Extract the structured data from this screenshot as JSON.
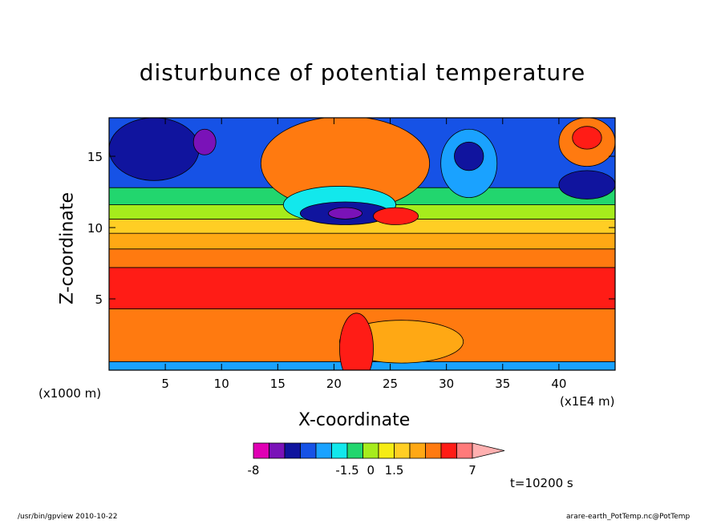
{
  "chart_data": {
    "type": "heatmap",
    "title": "disturbunce of potential temperature",
    "xlabel": "X-coordinate",
    "ylabel": "Z-coordinate",
    "x_unit_label": "(x1000 m)",
    "x_scale_label": "(x1E4 m)",
    "xlim": [
      0,
      45
    ],
    "ylim": [
      0,
      17.7
    ],
    "xticks": [
      5,
      10,
      15,
      20,
      25,
      30,
      35,
      40
    ],
    "xtick_labels": [
      "5",
      "10",
      "15",
      "20",
      "25",
      "30",
      "35",
      "40"
    ],
    "yticks": [
      5,
      10,
      15
    ],
    "ytick_labels": [
      "5",
      "10",
      "15"
    ],
    "colorbar": {
      "tick_labels": [
        "-8",
        "-1.5",
        "0",
        "1.5",
        "7"
      ],
      "colors": [
        "#e000b4",
        "#7a12b8",
        "#10149e",
        "#1652e6",
        "#1aa2ff",
        "#12e8ec",
        "#22d66e",
        "#a6ec1c",
        "#f6ec14",
        "#ffce24",
        "#ffa814",
        "#ff7a10",
        "#ff1c16",
        "#ff7a7a",
        "#ffb0b0"
      ]
    },
    "bands": [
      {
        "z": [
          0,
          0.6
        ],
        "level": 4
      },
      {
        "z": [
          0.6,
          4.3
        ],
        "level": 11
      },
      {
        "z": [
          4.3,
          7.2
        ],
        "level": 12
      },
      {
        "z": [
          7.2,
          8.5
        ],
        "level": 11
      },
      {
        "z": [
          8.5,
          9.6
        ],
        "level": 10
      },
      {
        "z": [
          9.6,
          10.6
        ],
        "level": 9
      },
      {
        "z": [
          10.6,
          11.6
        ],
        "level": 7
      },
      {
        "z": [
          11.6,
          12.8
        ],
        "level": 6
      },
      {
        "z": [
          12.8,
          17.7
        ],
        "level": 3
      }
    ],
    "features": [
      {
        "cx": 4.0,
        "cz": 15.5,
        "rx": 4.0,
        "rz": 2.2,
        "level": 2
      },
      {
        "cx": 8.5,
        "cz": 16.0,
        "rx": 1.0,
        "rz": 0.9,
        "level": 1
      },
      {
        "cx": 21.0,
        "cz": 14.5,
        "rx": 7.5,
        "rz": 3.3,
        "level": 11
      },
      {
        "cx": 20.5,
        "cz": 11.6,
        "rx": 5.0,
        "rz": 1.3,
        "level": 5
      },
      {
        "cx": 21.0,
        "cz": 11.0,
        "rx": 4.0,
        "rz": 0.8,
        "level": 2
      },
      {
        "cx": 21.0,
        "cz": 11.0,
        "rx": 1.5,
        "rz": 0.4,
        "level": 1
      },
      {
        "cx": 25.5,
        "cz": 10.8,
        "rx": 2.0,
        "rz": 0.6,
        "level": 12
      },
      {
        "cx": 32.0,
        "cz": 14.5,
        "rx": 2.5,
        "rz": 2.4,
        "level": 4
      },
      {
        "cx": 32.0,
        "cz": 15.0,
        "rx": 1.3,
        "rz": 1.0,
        "level": 2
      },
      {
        "cx": 42.5,
        "cz": 16.0,
        "rx": 2.5,
        "rz": 1.7,
        "level": 11
      },
      {
        "cx": 42.5,
        "cz": 16.3,
        "rx": 1.3,
        "rz": 0.8,
        "level": 12
      },
      {
        "cx": 42.5,
        "cz": 13.0,
        "rx": 2.5,
        "rz": 1.0,
        "level": 2
      },
      {
        "cx": 26.0,
        "cz": 2.0,
        "rx": 5.5,
        "rz": 1.5,
        "level": 10
      },
      {
        "cx": 22.0,
        "cz": 1.5,
        "rx": 1.5,
        "rz": 2.5,
        "level": 12
      }
    ],
    "timestamp": "t=10200 s"
  },
  "footer": {
    "left": "/usr/bin/gpview  2010-10-22",
    "right": "arare-earth_PotTemp.nc@PotTemp"
  }
}
